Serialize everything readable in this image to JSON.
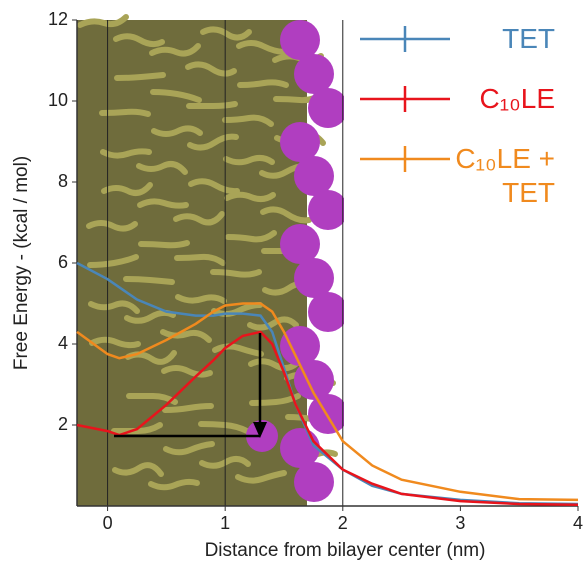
{
  "chart_data": {
    "type": "line",
    "x_label": "Distance from bilayer center (nm)",
    "y_label": "Free Energy - (kcal / mol)",
    "x": [
      -0.26,
      0,
      0.1,
      0.25,
      0.5,
      0.75,
      0.9,
      1.0,
      1.15,
      1.3,
      1.4,
      1.5,
      1.6,
      1.75,
      2.0,
      2.25,
      2.5,
      3.0,
      3.5,
      4.0
    ],
    "series": [
      {
        "name": "TET",
        "color": "#4a86b8",
        "values": [
          6.0,
          5.6,
          5.4,
          5.1,
          4.8,
          4.7,
          4.7,
          4.75,
          4.75,
          4.7,
          4.3,
          3.4,
          2.5,
          1.5,
          0.9,
          0.5,
          0.3,
          0.15,
          0.07,
          0.05
        ]
      },
      {
        "name": "C₁₀LE",
        "color": "#e8141c",
        "values": [
          2.0,
          1.85,
          1.75,
          1.9,
          2.5,
          3.2,
          3.6,
          3.9,
          4.2,
          4.3,
          4.0,
          3.3,
          2.5,
          1.6,
          0.9,
          0.55,
          0.3,
          0.12,
          0.05,
          0.03
        ]
      },
      {
        "name": "C₁₀LE + TET",
        "color": "#f08a1e",
        "values": [
          4.3,
          3.75,
          3.65,
          3.75,
          4.1,
          4.5,
          4.8,
          4.95,
          5.0,
          5.0,
          4.8,
          4.3,
          3.7,
          2.8,
          1.6,
          1.0,
          0.65,
          0.35,
          0.17,
          0.15
        ]
      }
    ],
    "xlim": [
      -0.26,
      4
    ],
    "ylim": [
      0,
      12
    ],
    "xticks": [
      0,
      1,
      2,
      3,
      4
    ],
    "yticks": [
      2,
      4,
      6,
      8,
      10,
      12
    ],
    "xgrid": [
      0,
      1,
      2
    ]
  }
}
